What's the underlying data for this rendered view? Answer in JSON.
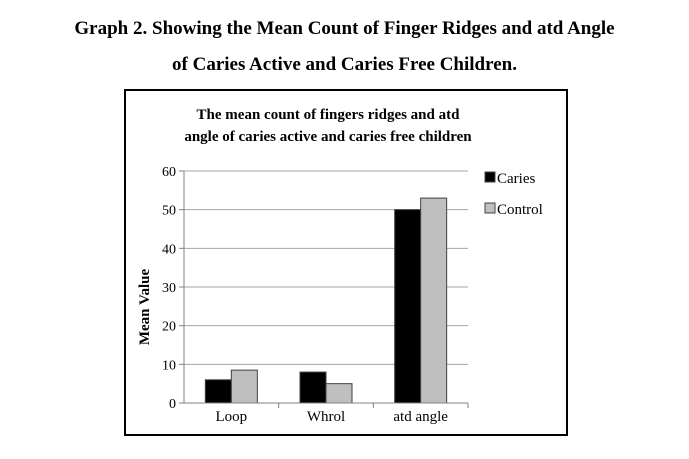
{
  "caption": {
    "line1": "Graph 2. Showing the Mean Count of Finger Ridges and atd Angle",
    "line2": "of Caries Active and Caries Free Children."
  },
  "chart_data": {
    "type": "bar",
    "title": [
      "The mean count of fingers ridges and atd",
      "angle of caries active and caries free children"
    ],
    "xlabel": "",
    "ylabel": "Mean Value",
    "ylim": [
      0,
      60
    ],
    "yticks": [
      0,
      10,
      20,
      30,
      40,
      50,
      60
    ],
    "grid": true,
    "legend_position": "right",
    "categories": [
      "Loop",
      "Whrol",
      "atd angle"
    ],
    "series": [
      {
        "name": "Caries",
        "values": [
          6,
          8,
          50
        ],
        "color": "#000000"
      },
      {
        "name": "Control",
        "values": [
          8.5,
          5,
          53
        ],
        "color": "#bfbfbf"
      }
    ]
  }
}
